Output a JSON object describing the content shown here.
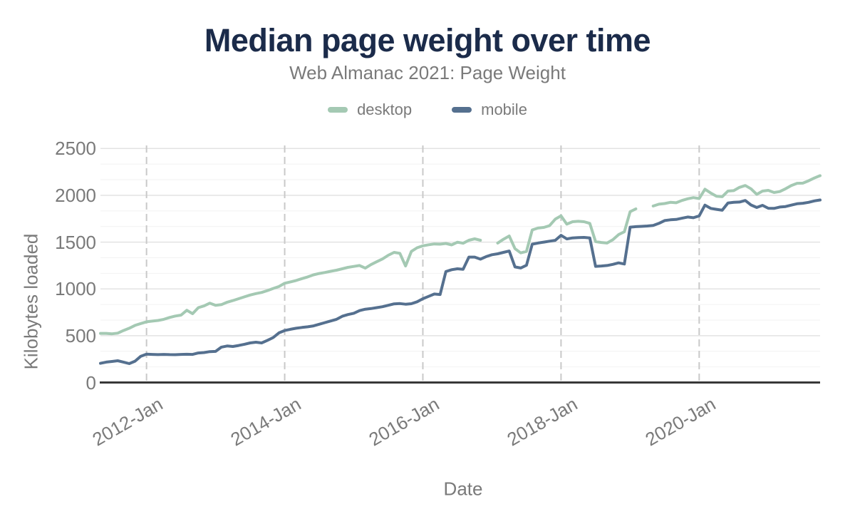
{
  "header": {
    "title": "Median page weight over time",
    "subtitle": "Web Almanac 2021: Page Weight"
  },
  "chart_data": {
    "type": "line",
    "title": "Median page weight over time",
    "subtitle": "Web Almanac 2021: Page Weight",
    "xlabel": "Date",
    "ylabel": "Kilobytes loaded",
    "ylim": [
      0,
      2500
    ],
    "grid": "on",
    "legend_position": "top",
    "y_axis": {
      "ticks": [
        0,
        500,
        1000,
        1500,
        2000,
        2500
      ],
      "minor_gridlines_per_interval": 2
    },
    "x_axis": {
      "tick_labels": [
        "2012-Jan",
        "2014-Jan",
        "2016-Jan",
        "2018-Jan",
        "2020-Jan"
      ]
    },
    "x_months": [
      "2011-05",
      "2011-06",
      "2011-07",
      "2011-08",
      "2011-09",
      "2011-10",
      "2011-11",
      "2011-12",
      "2012-01",
      "2012-02",
      "2012-03",
      "2012-04",
      "2012-05",
      "2012-06",
      "2012-07",
      "2012-08",
      "2012-09",
      "2012-10",
      "2012-11",
      "2012-12",
      "2013-01",
      "2013-02",
      "2013-03",
      "2013-04",
      "2013-05",
      "2013-06",
      "2013-07",
      "2013-08",
      "2013-09",
      "2013-10",
      "2013-11",
      "2013-12",
      "2014-01",
      "2014-02",
      "2014-03",
      "2014-04",
      "2014-05",
      "2014-06",
      "2014-07",
      "2014-08",
      "2014-09",
      "2014-10",
      "2014-11",
      "2014-12",
      "2015-01",
      "2015-02",
      "2015-03",
      "2015-04",
      "2015-05",
      "2015-06",
      "2015-07",
      "2015-08",
      "2015-09",
      "2015-10",
      "2015-11",
      "2015-12",
      "2016-01",
      "2016-02",
      "2016-03",
      "2016-04",
      "2016-05",
      "2016-06",
      "2016-07",
      "2016-08",
      "2016-09",
      "2016-10",
      "2016-11",
      "2016-12",
      "2017-01",
      "2017-02",
      "2017-03",
      "2017-04",
      "2017-05",
      "2017-06",
      "2017-07",
      "2017-08",
      "2017-09",
      "2017-10",
      "2017-11",
      "2017-12",
      "2018-01",
      "2018-02",
      "2018-03",
      "2018-04",
      "2018-05",
      "2018-06",
      "2018-07",
      "2018-08",
      "2018-09",
      "2018-10",
      "2018-11",
      "2018-12",
      "2019-01",
      "2019-02",
      "2019-03",
      "2019-04",
      "2019-05",
      "2019-06",
      "2019-07",
      "2019-08",
      "2019-09",
      "2019-10",
      "2019-11",
      "2019-12",
      "2020-01",
      "2020-02",
      "2020-03",
      "2020-04",
      "2020-05",
      "2020-06",
      "2020-07",
      "2020-08",
      "2020-09",
      "2020-10",
      "2020-11",
      "2020-12",
      "2021-01",
      "2021-02",
      "2021-03",
      "2021-04",
      "2021-05",
      "2021-06",
      "2021-07",
      "2021-08",
      "2021-09",
      "2021-10"
    ],
    "series": [
      {
        "name": "desktop",
        "color": "#a4c9b3",
        "values": [
          525,
          525,
          520,
          527,
          555,
          580,
          610,
          630,
          648,
          656,
          663,
          675,
          695,
          710,
          720,
          772,
          735,
          800,
          818,
          848,
          825,
          832,
          858,
          875,
          895,
          915,
          935,
          950,
          962,
          982,
          1005,
          1025,
          1060,
          1075,
          1090,
          1110,
          1128,
          1150,
          1165,
          1175,
          1188,
          1200,
          1215,
          1230,
          1240,
          1250,
          1222,
          1260,
          1290,
          1320,
          1360,
          1390,
          1380,
          1245,
          1400,
          1440,
          1460,
          1472,
          1480,
          1478,
          1485,
          1470,
          1499,
          1488,
          1520,
          1535,
          1520,
          null,
          null,
          1490,
          1530,
          1565,
          1430,
          1385,
          1400,
          1630,
          1650,
          1657,
          1675,
          1745,
          1780,
          1692,
          1718,
          1722,
          1718,
          1700,
          1505,
          1496,
          1490,
          1525,
          1580,
          1610,
          1825,
          1855,
          null,
          null,
          1885,
          1905,
          1912,
          1925,
          1920,
          1945,
          1963,
          1975,
          1965,
          2065,
          2025,
          1990,
          1985,
          2045,
          2050,
          2085,
          2105,
          2070,
          2010,
          2045,
          2053,
          2030,
          2040,
          2070,
          2105,
          2128,
          2130,
          2155,
          2185,
          2210
        ]
      },
      {
        "name": "mobile",
        "color": "#55708f",
        "values": [
          205,
          218,
          225,
          232,
          218,
          202,
          228,
          280,
          303,
          300,
          298,
          300,
          298,
          297,
          300,
          302,
          300,
          315,
          320,
          330,
          332,
          378,
          390,
          385,
          395,
          408,
          423,
          430,
          423,
          450,
          480,
          530,
          555,
          568,
          580,
          588,
          595,
          605,
          622,
          640,
          657,
          675,
          708,
          726,
          740,
          768,
          783,
          790,
          800,
          810,
          825,
          840,
          843,
          836,
          842,
          862,
          895,
          920,
          945,
          940,
          1185,
          1205,
          1215,
          1210,
          1340,
          1340,
          1318,
          1345,
          1365,
          1375,
          1390,
          1405,
          1235,
          1223,
          1252,
          1478,
          1490,
          1500,
          1510,
          1519,
          1572,
          1534,
          1545,
          1548,
          1550,
          1545,
          1241,
          1245,
          1250,
          1262,
          1278,
          1266,
          1660,
          1665,
          1668,
          1672,
          1678,
          1700,
          1730,
          1738,
          1742,
          1755,
          1768,
          1760,
          1780,
          1895,
          1860,
          1850,
          1840,
          1918,
          1925,
          1928,
          1945,
          1897,
          1870,
          1893,
          1862,
          1860,
          1875,
          1880,
          1895,
          1910,
          1915,
          1925,
          1940,
          1950
        ]
      }
    ]
  }
}
